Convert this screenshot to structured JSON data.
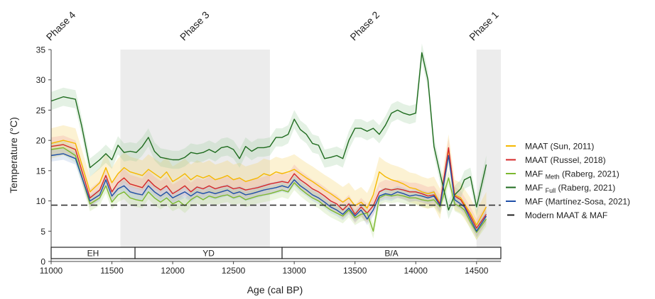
{
  "chart_data": {
    "type": "line",
    "xlabel": "Age (cal BP)",
    "ylabel": "Temperature (°C)",
    "xlim": [
      11000,
      14700
    ],
    "ylim": [
      0,
      35
    ],
    "x_ticks": [
      11000,
      11500,
      12000,
      12500,
      13000,
      13500,
      14000,
      14500
    ],
    "y_ticks": [
      0,
      5,
      10,
      15,
      20,
      25,
      30,
      35
    ],
    "reference_line": {
      "value": 9.3,
      "label": "Modern MAAT & MAF",
      "style": "dashed",
      "color": "#333333"
    },
    "phases": [
      {
        "label": "Phase 4",
        "x": 11100,
        "shaded": false
      },
      {
        "label": "Phase 3",
        "x": 12200,
        "range": [
          11570,
          12800
        ],
        "shaded": true
      },
      {
        "label": "Phase 2",
        "x": 13600,
        "shaded": false
      },
      {
        "label": "Phase 1",
        "x": 14580,
        "range": [
          14500,
          14700
        ],
        "shaded": true
      }
    ],
    "periods": [
      {
        "label": "EH",
        "range": [
          11000,
          11690
        ]
      },
      {
        "label": "YD",
        "range": [
          11690,
          12900
        ]
      },
      {
        "label": "B/A",
        "range": [
          12900,
          14700
        ]
      }
    ],
    "legend_position": "right",
    "series": [
      {
        "name": "MAAT (Sun, 2011)",
        "label_main": "MAAT (Sun, 2011)",
        "label_sub": "",
        "label_tail": "",
        "color": "#f5b800",
        "band_color": "#f5d060",
        "band": 2.5,
        "x": [
          11000,
          11100,
          11200,
          11320,
          11400,
          11450,
          11500,
          11550,
          11600,
          11650,
          11700,
          11750,
          11800,
          11850,
          11900,
          11950,
          12000,
          12050,
          12100,
          12150,
          12200,
          12250,
          12300,
          12350,
          12400,
          12450,
          12500,
          12550,
          12600,
          12650,
          12700,
          12750,
          12800,
          12850,
          12900,
          12950,
          13000,
          13050,
          13100,
          13150,
          13200,
          13250,
          13300,
          13350,
          13400,
          13450,
          13500,
          13550,
          13600,
          13650,
          13700,
          13750,
          13800,
          13850,
          13900,
          13950,
          14000,
          14050,
          14100,
          14150,
          14200,
          14270,
          14320,
          14370,
          14400,
          14450,
          14500,
          14580
        ],
        "values": [
          19.5,
          20.0,
          19.5,
          11.5,
          13.0,
          15.5,
          13.0,
          14.5,
          15.5,
          14.8,
          14.5,
          14.2,
          15.2,
          14.5,
          13.8,
          14.8,
          13.2,
          13.8,
          14.5,
          13.5,
          14.2,
          13.8,
          14.2,
          13.5,
          13.8,
          14.2,
          13.5,
          13.8,
          13.2,
          13.5,
          13.8,
          14.5,
          14.2,
          14.8,
          14.5,
          14.8,
          15.2,
          14.5,
          13.8,
          13.2,
          12.5,
          11.8,
          11.2,
          10.5,
          9.8,
          10.5,
          9.2,
          9.8,
          8.8,
          11.0,
          14.8,
          14.0,
          13.5,
          13.2,
          12.8,
          12.2,
          12.0,
          11.5,
          11.2,
          11.5,
          9.5,
          18.5,
          11.0,
          10.5,
          9.5,
          8.0,
          6.0,
          9.0
        ]
      },
      {
        "name": "MAAT (Russel, 2018)",
        "label_main": "MAAT (Russel, 2018)",
        "label_sub": "",
        "label_tail": "",
        "color": "#d62728",
        "band_color": "#f0a0a0",
        "band": 1.5,
        "x": [
          11000,
          11100,
          11200,
          11320,
          11400,
          11450,
          11500,
          11550,
          11600,
          11650,
          11700,
          11750,
          11800,
          11850,
          11900,
          11950,
          12000,
          12050,
          12100,
          12150,
          12200,
          12250,
          12300,
          12350,
          12400,
          12450,
          12500,
          12550,
          12600,
          12650,
          12700,
          12750,
          12800,
          12850,
          12900,
          12950,
          13000,
          13050,
          13100,
          13150,
          13200,
          13250,
          13300,
          13350,
          13400,
          13450,
          13500,
          13550,
          13600,
          13650,
          13700,
          13750,
          13800,
          13850,
          13900,
          13950,
          14000,
          14050,
          14100,
          14150,
          14200,
          14270,
          14320,
          14370,
          14400,
          14450,
          14500,
          14580
        ],
        "values": [
          19.0,
          19.3,
          18.5,
          10.5,
          11.8,
          14.2,
          11.5,
          13.0,
          13.8,
          12.8,
          12.5,
          12.2,
          13.5,
          12.5,
          11.8,
          12.5,
          11.2,
          11.8,
          12.5,
          11.5,
          12.3,
          12.0,
          12.5,
          12.0,
          12.3,
          12.5,
          12.0,
          12.2,
          11.8,
          12.0,
          12.2,
          12.5,
          12.8,
          13.0,
          13.2,
          13.0,
          14.5,
          13.5,
          12.8,
          12.0,
          11.5,
          10.8,
          10.0,
          9.5,
          8.5,
          9.5,
          7.8,
          9.0,
          8.0,
          9.2,
          11.5,
          12.0,
          11.8,
          12.0,
          11.8,
          11.5,
          11.5,
          11.2,
          10.8,
          11.0,
          9.5,
          18.8,
          10.8,
          10.2,
          9.2,
          7.5,
          5.5,
          7.8
        ]
      },
      {
        "name": "MAF Meth (Raberg, 2021)",
        "label_main": "MAF ",
        "label_sub": "Meth",
        "label_tail": " (Raberg, 2021)",
        "color": "#7cb82f",
        "band_color": "#b8dc8c",
        "band": 1.2,
        "x": [
          11000,
          11100,
          11200,
          11320,
          11400,
          11450,
          11500,
          11550,
          11600,
          11650,
          11700,
          11750,
          11800,
          11850,
          11900,
          11950,
          12000,
          12050,
          12100,
          12150,
          12200,
          12250,
          12300,
          12350,
          12400,
          12450,
          12500,
          12550,
          12600,
          12650,
          12700,
          12750,
          12800,
          12850,
          12900,
          12950,
          13000,
          13050,
          13100,
          13150,
          13200,
          13250,
          13300,
          13350,
          13400,
          13450,
          13500,
          13550,
          13600,
          13650,
          13700,
          13750,
          13800,
          13850,
          13900,
          13950,
          14000,
          14050,
          14100,
          14150,
          14200,
          14270,
          14320,
          14370,
          14400,
          14450,
          14500,
          14580
        ],
        "values": [
          18.5,
          18.8,
          17.5,
          9.5,
          10.5,
          12.5,
          9.8,
          11.0,
          11.5,
          10.5,
          10.2,
          10.0,
          11.5,
          10.5,
          9.8,
          10.5,
          9.5,
          10.0,
          9.2,
          10.2,
          10.8,
          10.2,
          10.8,
          10.5,
          10.8,
          11.0,
          10.5,
          10.8,
          10.2,
          10.5,
          10.8,
          11.0,
          11.2,
          11.5,
          11.8,
          11.5,
          13.0,
          12.0,
          11.2,
          10.5,
          10.0,
          9.2,
          8.5,
          8.0,
          7.5,
          8.5,
          7.2,
          7.8,
          8.0,
          5.0,
          10.5,
          11.0,
          10.8,
          11.0,
          10.8,
          10.5,
          10.5,
          10.2,
          10.0,
          10.2,
          9.0,
          13.8,
          9.5,
          9.0,
          8.5,
          6.5,
          4.8,
          7.0
        ]
      },
      {
        "name": "MAF Full (Raberg, 2021)",
        "label_main": "MAF ",
        "label_sub": "Full",
        "label_tail": " (Raberg, 2021)",
        "color": "#1e6b1e",
        "band_color": "#9fcc9f",
        "band": 1.5,
        "x": [
          11000,
          11100,
          11200,
          11250,
          11320,
          11400,
          11450,
          11500,
          11550,
          11600,
          11650,
          11700,
          11750,
          11800,
          11850,
          11900,
          11950,
          12000,
          12050,
          12100,
          12150,
          12200,
          12250,
          12300,
          12350,
          12400,
          12450,
          12500,
          12550,
          12600,
          12650,
          12700,
          12750,
          12800,
          12850,
          12900,
          12950,
          13000,
          13050,
          13100,
          13150,
          13200,
          13250,
          13300,
          13350,
          13400,
          13450,
          13500,
          13550,
          13600,
          13650,
          13700,
          13750,
          13800,
          13850,
          13900,
          13950,
          14000,
          14050,
          14100,
          14150,
          14200,
          14270,
          14320,
          14370,
          14400,
          14450,
          14500,
          14580
        ],
        "values": [
          26.5,
          27.2,
          26.8,
          22.5,
          15.5,
          16.8,
          17.8,
          16.8,
          19.2,
          18.0,
          18.2,
          18.0,
          19.0,
          20.5,
          18.2,
          17.2,
          17.0,
          16.8,
          16.8,
          17.2,
          18.0,
          17.8,
          18.0,
          18.5,
          18.0,
          18.8,
          19.0,
          18.5,
          17.0,
          19.0,
          18.2,
          18.8,
          18.8,
          19.0,
          20.5,
          20.5,
          21.0,
          23.5,
          21.8,
          21.0,
          19.5,
          19.2,
          17.0,
          17.2,
          17.5,
          17.0,
          20.0,
          22.0,
          22.0,
          21.5,
          22.0,
          21.0,
          22.5,
          24.5,
          25.0,
          24.5,
          24.2,
          24.5,
          34.5,
          30.0,
          19.0,
          14.5,
          8.5,
          11.0,
          12.0,
          13.5,
          14.0,
          9.0,
          16.0
        ]
      },
      {
        "name": "MAF (Martínez-Sosa, 2021)",
        "label_main": "MAF (Martínez-Sosa, 2021)",
        "label_sub": "",
        "label_tail": "",
        "color": "#1f4fa8",
        "band_color": "#9ab8e0",
        "band": 1.0,
        "x": [
          11000,
          11100,
          11200,
          11320,
          11400,
          11450,
          11500,
          11550,
          11600,
          11650,
          11700,
          11750,
          11800,
          11850,
          11900,
          11950,
          12000,
          12050,
          12100,
          12150,
          12200,
          12250,
          12300,
          12350,
          12400,
          12450,
          12500,
          12550,
          12600,
          12650,
          12700,
          12750,
          12800,
          12850,
          12900,
          12950,
          13000,
          13050,
          13100,
          13150,
          13200,
          13250,
          13300,
          13350,
          13400,
          13450,
          13500,
          13550,
          13600,
          13650,
          13700,
          13750,
          13800,
          13850,
          13900,
          13950,
          14000,
          14050,
          14100,
          14150,
          14200,
          14270,
          14320,
          14370,
          14400,
          14450,
          14500,
          14580
        ],
        "values": [
          17.5,
          17.8,
          17.0,
          10.0,
          11.0,
          13.5,
          10.8,
          12.0,
          12.5,
          11.5,
          11.2,
          11.0,
          12.5,
          11.5,
          10.8,
          11.5,
          10.5,
          11.0,
          11.5,
          10.8,
          11.5,
          11.2,
          11.5,
          11.2,
          11.5,
          11.8,
          11.2,
          11.5,
          11.0,
          11.2,
          11.5,
          11.8,
          12.0,
          12.2,
          12.5,
          12.2,
          13.5,
          12.5,
          11.8,
          11.0,
          10.5,
          9.8,
          9.0,
          8.5,
          7.8,
          8.8,
          7.5,
          8.5,
          7.0,
          8.5,
          10.8,
          11.2,
          11.0,
          11.5,
          11.2,
          10.8,
          11.0,
          10.8,
          10.5,
          10.8,
          9.2,
          17.5,
          10.2,
          9.5,
          9.0,
          7.0,
          5.0,
          7.5
        ]
      }
    ]
  }
}
